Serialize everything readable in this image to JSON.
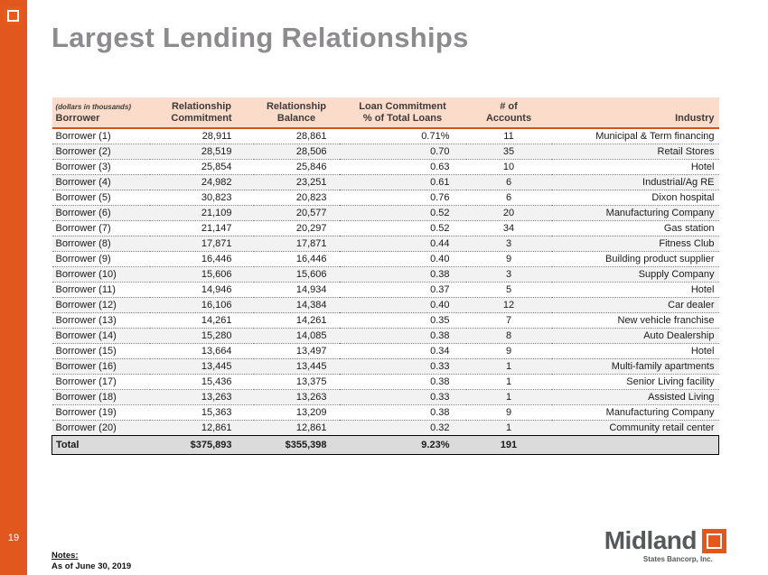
{
  "slide": {
    "title": "Largest Lending Relationships",
    "page_number": "19"
  },
  "footer": {
    "notes_label": "Notes:",
    "notes_text": "As of June 30, 2019"
  },
  "brand": {
    "name": "Midland",
    "subtext": "States Bancorp, Inc."
  },
  "colors": {
    "accent_orange": "#E2571D",
    "header_band": "#FBDCCA",
    "title_gray": "#8D8B8E",
    "total_row_gray": "#DBDBDB"
  },
  "table": {
    "header_row1": [
      "(dollars in thousands)",
      "Relationship",
      "Relationship",
      "Loan Commitment",
      "# of",
      ""
    ],
    "header_row2": [
      "Borrower",
      "Commitment",
      "Balance",
      "% of Total Loans",
      "Accounts",
      "Industry"
    ],
    "rows": [
      [
        "Borrower (1)",
        "28,911",
        "28,861",
        "0.71%",
        "11",
        "Municipal & Term financing"
      ],
      [
        "Borrower (2)",
        "28,519",
        "28,506",
        "0.70",
        "35",
        "Retail Stores"
      ],
      [
        "Borrower (3)",
        "25,854",
        "25,846",
        "0.63",
        "10",
        "Hotel"
      ],
      [
        "Borrower (4)",
        "24,982",
        "23,251",
        "0.61",
        "6",
        "Industrial/Ag RE"
      ],
      [
        "Borrower (5)",
        "30,823",
        "20,823",
        "0.76",
        "6",
        "Dixon hospital"
      ],
      [
        "Borrower (6)",
        "21,109",
        "20,577",
        "0.52",
        "20",
        "Manufacturing Company"
      ],
      [
        "Borrower (7)",
        "21,147",
        "20,297",
        "0.52",
        "34",
        "Gas station"
      ],
      [
        "Borrower (8)",
        "17,871",
        "17,871",
        "0.44",
        "3",
        "Fitness Club"
      ],
      [
        "Borrower (9)",
        "16,446",
        "16,446",
        "0.40",
        "9",
        "Building product supplier"
      ],
      [
        "Borrower (10)",
        "15,606",
        "15,606",
        "0.38",
        "3",
        "Supply Company"
      ],
      [
        "Borrower (11)",
        "14,946",
        "14,934",
        "0.37",
        "5",
        "Hotel"
      ],
      [
        "Borrower (12)",
        "16,106",
        "14,384",
        "0.40",
        "12",
        "Car dealer"
      ],
      [
        "Borrower (13)",
        "14,261",
        "14,261",
        "0.35",
        "7",
        "New vehicle franchise"
      ],
      [
        "Borrower (14)",
        "15,280",
        "14,085",
        "0.38",
        "8",
        "Auto Dealership"
      ],
      [
        "Borrower (15)",
        "13,664",
        "13,497",
        "0.34",
        "9",
        "Hotel"
      ],
      [
        "Borrower (16)",
        "13,445",
        "13,445",
        "0.33",
        "1",
        "Multi-family apartments"
      ],
      [
        "Borrower (17)",
        "15,436",
        "13,375",
        "0.38",
        "1",
        "Senior Living facility"
      ],
      [
        "Borrower (18)",
        "13,263",
        "13,263",
        "0.33",
        "1",
        "Assisted Living"
      ],
      [
        "Borrower (19)",
        "15,363",
        "13,209",
        "0.38",
        "9",
        "Manufacturing Company"
      ],
      [
        "Borrower (20)",
        "12,861",
        "12,861",
        "0.32",
        "1",
        "Community retail center"
      ]
    ],
    "total": [
      "Total",
      "$375,893",
      "$355,398",
      "9.23%",
      "191",
      ""
    ]
  }
}
